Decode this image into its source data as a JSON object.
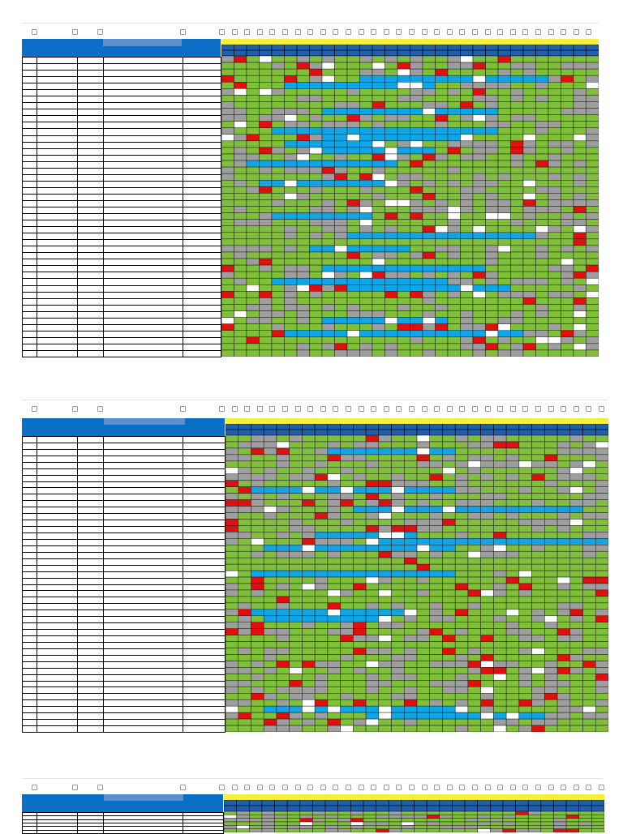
{
  "colors": {
    "header_blue": "#0b6ec7",
    "subheader_blue": "#5a8fd0",
    "timeline_yellow": "#f6f03c",
    "cell_green": "#7fbf3a",
    "cell_gray": "#9e9e9e",
    "cell_red": "#e01010",
    "cell_blue": "#10a6e6",
    "cell_white": "#ffffff",
    "row_header_blue": "#1f5fae"
  },
  "legend_words": [
    "green",
    "gray",
    "red",
    "blue",
    "white"
  ],
  "pages": [
    {
      "rows": 46,
      "days": 30,
      "icon": "small-square-icon"
    },
    {
      "rows": 46,
      "days": 30,
      "icon": "small-square-icon"
    },
    {
      "rows": 6,
      "days": 30,
      "icon": "small-square-icon"
    }
  ]
}
